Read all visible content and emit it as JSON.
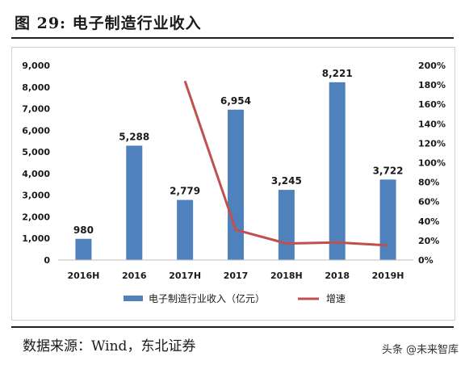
{
  "figure_title": "图 29:  电子制造行业收入",
  "source_text": "数据来源：Wind，东北证券",
  "watermark": "头条 @未来智库",
  "colors": {
    "bar": "#4f81bd",
    "line": "#c0504d",
    "axis": "#bfbfbf"
  },
  "chart_data": {
    "type": "bar",
    "title": "",
    "categories": [
      "2016H",
      "2016",
      "2017H",
      "2017",
      "2018H",
      "2018",
      "2019H"
    ],
    "series": [
      {
        "name": "电子制造行业收入（亿元）",
        "type": "bar",
        "axis": "left",
        "values": [
          980,
          5288,
          2779,
          6954,
          3245,
          8221,
          3722
        ]
      },
      {
        "name": "增速",
        "type": "line",
        "axis": "right",
        "values": [
          null,
          null,
          1.84,
          0.31,
          0.17,
          0.18,
          0.15
        ]
      }
    ],
    "data_labels": [
      "980",
      "5,288",
      "2,779",
      "6,954",
      "3,245",
      "8,221",
      "3,722"
    ],
    "y_left": {
      "min": 0,
      "max": 9000,
      "ticks": [
        "0",
        "1,000",
        "2,000",
        "3,000",
        "4,000",
        "5,000",
        "6,000",
        "7,000",
        "8,000",
        "9,000"
      ]
    },
    "y_right": {
      "min": 0,
      "max": 2.0,
      "ticks": [
        "0%",
        "20%",
        "40%",
        "60%",
        "80%",
        "100%",
        "120%",
        "140%",
        "160%",
        "180%",
        "200%"
      ]
    },
    "legend": {
      "position": "bottom",
      "items": [
        "电子制造行业收入（亿元）",
        "增速"
      ]
    },
    "grid": false
  }
}
